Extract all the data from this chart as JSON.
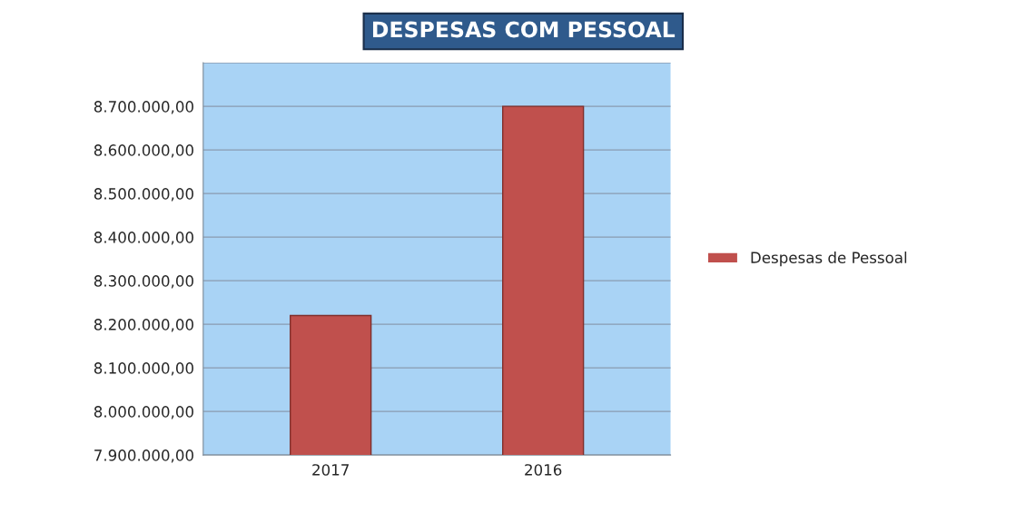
{
  "chart_data": {
    "type": "bar",
    "title": "DESPESAS COM PESSOAL",
    "categories": [
      "2017",
      "2016"
    ],
    "series": [
      {
        "name": "Despesas de Pessoal",
        "color": "#c0504d",
        "values": [
          8220000,
          8700000
        ]
      }
    ],
    "ylim": [
      7900000,
      8800000
    ],
    "yticks": [
      {
        "value": 7900000,
        "label": "7.900.000,00"
      },
      {
        "value": 8000000,
        "label": "8.000.000,00"
      },
      {
        "value": 8100000,
        "label": "8.100.000,00"
      },
      {
        "value": 8200000,
        "label": "8.200.000,00"
      },
      {
        "value": 8300000,
        "label": "8.300.000,00"
      },
      {
        "value": 8400000,
        "label": "8.400.000,00"
      },
      {
        "value": 8500000,
        "label": "8.500.000,00"
      },
      {
        "value": 8600000,
        "label": "8.600.000,00"
      },
      {
        "value": 8700000,
        "label": "8.700.000,00"
      },
      {
        "value": 8800000,
        "label": null
      }
    ],
    "grid": "y",
    "legend": "right"
  }
}
